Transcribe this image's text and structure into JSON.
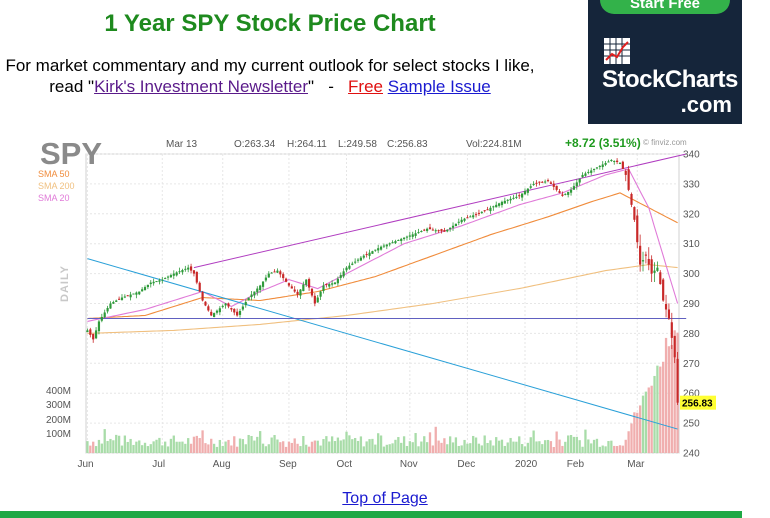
{
  "page": {
    "title": "1 Year SPY Stock Price Chart",
    "promo_line1": "For market commentary and my current outlook for select stocks I like,",
    "promo_read": "read \"",
    "newsletter_link": "Kirk's Investment Newsletter",
    "promo_sep": "\"   -   ",
    "free_link": "Free",
    "sample_link": "Sample Issue",
    "top_link": "Top of Page"
  },
  "ad": {
    "button": "Start Free",
    "brand": "StockCharts",
    "suffix": ".com"
  },
  "chart_data": {
    "type": "candlestick",
    "symbol": "SPY",
    "ylabel_left": "DAILY",
    "header": {
      "date": "Mar 13",
      "open": "O:263.34",
      "high": "H:264.11",
      "low": "L:249.58",
      "close": "C:256.83",
      "volume": "Vol:224.81M",
      "change": "+8.72 (3.51%)",
      "source": "© finviz.com"
    },
    "legend": [
      {
        "name": "SMA 50",
        "color": "#f08c3c"
      },
      {
        "name": "SMA 200",
        "color": "#f0c080"
      },
      {
        "name": "SMA 20",
        "color": "#e07ad8"
      }
    ],
    "y_ticks": [
      340,
      330,
      320,
      310,
      300,
      290,
      280,
      270,
      260,
      250,
      240
    ],
    "ylim": [
      240,
      340
    ],
    "volume_ticks": [
      "400M",
      "300M",
      "200M",
      "100M"
    ],
    "x_ticks": [
      "Jun",
      "Jul",
      "Aug",
      "Sep",
      "Oct",
      "Nov",
      "Dec",
      "2020",
      "Feb",
      "Mar"
    ],
    "last_price_label": "256.83",
    "anchors": [
      [
        0,
        281
      ],
      [
        2,
        278
      ],
      [
        4,
        284
      ],
      [
        8,
        290
      ],
      [
        12,
        292
      ],
      [
        18,
        294
      ],
      [
        22,
        297
      ],
      [
        26,
        298
      ],
      [
        30,
        300
      ],
      [
        35,
        302
      ],
      [
        37,
        300
      ],
      [
        40,
        291
      ],
      [
        43,
        286
      ],
      [
        48,
        290
      ],
      [
        52,
        286
      ],
      [
        56,
        292
      ],
      [
        60,
        296
      ],
      [
        63,
        300
      ],
      [
        66,
        301
      ],
      [
        70,
        296
      ],
      [
        73,
        293
      ],
      [
        76,
        298
      ],
      [
        79,
        290
      ],
      [
        82,
        296
      ],
      [
        86,
        297
      ],
      [
        90,
        302
      ],
      [
        96,
        306
      ],
      [
        102,
        309
      ],
      [
        110,
        312
      ],
      [
        118,
        315
      ],
      [
        124,
        314
      ],
      [
        130,
        318
      ],
      [
        138,
        321
      ],
      [
        144,
        324
      ],
      [
        150,
        326
      ],
      [
        155,
        330
      ],
      [
        160,
        331
      ],
      [
        165,
        326
      ],
      [
        168,
        328
      ],
      [
        172,
        333
      ],
      [
        178,
        336
      ],
      [
        182,
        338
      ],
      [
        185,
        337
      ],
      [
        187,
        333
      ],
      [
        190,
        318
      ],
      [
        192,
        303
      ],
      [
        194,
        306
      ],
      [
        196,
        300
      ],
      [
        198,
        302
      ],
      [
        200,
        291
      ],
      [
        202,
        285
      ],
      [
        204,
        272
      ],
      [
        205,
        256.83
      ]
    ],
    "sma50": [
      [
        0,
        285
      ],
      [
        20,
        286
      ],
      [
        40,
        292
      ],
      [
        60,
        291
      ],
      [
        80,
        294
      ],
      [
        100,
        299
      ],
      [
        120,
        306
      ],
      [
        140,
        313
      ],
      [
        160,
        319
      ],
      [
        175,
        324
      ],
      [
        185,
        327
      ],
      [
        195,
        322
      ],
      [
        205,
        317
      ]
    ],
    "sma200": [
      [
        0,
        280
      ],
      [
        30,
        281
      ],
      [
        60,
        283
      ],
      [
        90,
        286
      ],
      [
        120,
        290
      ],
      [
        150,
        295
      ],
      [
        180,
        301
      ],
      [
        195,
        303
      ],
      [
        205,
        302
      ]
    ],
    "sma20": [
      [
        0,
        284
      ],
      [
        20,
        288
      ],
      [
        40,
        294
      ],
      [
        50,
        289
      ],
      [
        60,
        294
      ],
      [
        70,
        298
      ],
      [
        80,
        295
      ],
      [
        90,
        300
      ],
      [
        110,
        310
      ],
      [
        130,
        316
      ],
      [
        150,
        323
      ],
      [
        165,
        327
      ],
      [
        180,
        333
      ],
      [
        188,
        335
      ],
      [
        195,
        322
      ],
      [
        200,
        306
      ],
      [
        205,
        290
      ]
    ],
    "trendlines": [
      {
        "color": "#b03cc0",
        "from": [
          37,
          302
        ],
        "to": [
          208,
          340
        ]
      },
      {
        "color": "#2aa0d8",
        "from": [
          0,
          305
        ],
        "to": [
          205,
          248
        ]
      },
      {
        "color": "#6060c0",
        "from": [
          0,
          285
        ],
        "to": [
          208,
          285
        ]
      }
    ]
  }
}
